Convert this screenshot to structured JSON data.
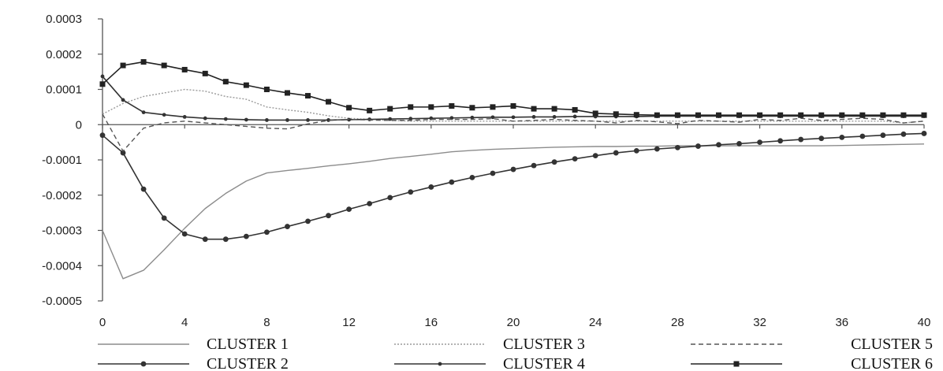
{
  "chart_data": {
    "type": "line",
    "title": "",
    "xlabel": "",
    "ylabel": "",
    "xlim": [
      0,
      40
    ],
    "ylim": [
      -0.0005,
      0.0003
    ],
    "x_ticks": [
      "0",
      "4",
      "8",
      "12",
      "16",
      "20",
      "24",
      "28",
      "32",
      "36",
      "40"
    ],
    "y_ticks": [
      "0.0003",
      "0.0002",
      "0.0001",
      "0",
      "-0.0001",
      "-0.0002",
      "-0.0003",
      "-0.0004",
      "-0.0005"
    ],
    "grid": false,
    "legend_position": "bottom",
    "x": [
      0,
      1,
      2,
      3,
      4,
      5,
      6,
      7,
      8,
      9,
      10,
      11,
      12,
      13,
      14,
      15,
      16,
      17,
      18,
      19,
      20,
      21,
      22,
      23,
      24,
      25,
      26,
      27,
      28,
      29,
      30,
      31,
      32,
      33,
      34,
      35,
      36,
      37,
      38,
      39,
      40
    ],
    "series": [
      {
        "name": "CLUSTER 1",
        "style": "solid",
        "marker": "none",
        "color": "#8c8c8c",
        "values": [
          -0.0003,
          -0.000437,
          -0.000413,
          -0.000355,
          -0.000294,
          -0.000238,
          -0.000195,
          -0.00016,
          -0.000137,
          -0.00013,
          -0.000124,
          -0.000117,
          -0.000111,
          -0.000104,
          -9.6e-05,
          -9e-05,
          -8.4e-05,
          -7.7e-05,
          -7.3e-05,
          -7e-05,
          -6.8e-05,
          -6.6e-05,
          -6.4e-05,
          -6.3e-05,
          -6.2e-05,
          -6.2e-05,
          -6.1e-05,
          -6.1e-05,
          -6e-05,
          -6e-05,
          -6e-05,
          -6e-05,
          -6e-05,
          -6e-05,
          -6e-05,
          -6e-05,
          -5.9e-05,
          -5.8e-05,
          -5.7e-05,
          -5.6e-05,
          -5.5e-05
        ]
      },
      {
        "name": "CLUSTER 2",
        "style": "solid",
        "marker": "circle",
        "color": "#333333",
        "values": [
          -3e-05,
          -8e-05,
          -0.000183,
          -0.000265,
          -0.00031,
          -0.000325,
          -0.000325,
          -0.000317,
          -0.000305,
          -0.000289,
          -0.000274,
          -0.000258,
          -0.00024,
          -0.000224,
          -0.000207,
          -0.000191,
          -0.000177,
          -0.000163,
          -0.00015,
          -0.000138,
          -0.000127,
          -0.000116,
          -0.000106,
          -9.7e-05,
          -8.8e-05,
          -8e-05,
          -7.4e-05,
          -6.9e-05,
          -6.5e-05,
          -6.1e-05,
          -5.7e-05,
          -5.4e-05,
          -5e-05,
          -4.6e-05,
          -4.2e-05,
          -3.9e-05,
          -3.6e-05,
          -3.3e-05,
          -3e-05,
          -2.7e-05,
          -2.5e-05
        ]
      },
      {
        "name": "CLUSTER 3",
        "style": "dotted",
        "marker": "none",
        "color": "#9a9a9a",
        "values": [
          3e-05,
          6e-05,
          8e-05,
          9e-05,
          0.0001,
          9.5e-05,
          8e-05,
          7.2e-05,
          5e-05,
          4.2e-05,
          3.5e-05,
          2.5e-05,
          1.8e-05,
          1.5e-05,
          1.2e-05,
          1e-05,
          1e-05,
          1e-05,
          1e-05,
          1e-05,
          1e-05,
          1e-05,
          1e-05,
          1e-05,
          1e-05,
          1e-05,
          1e-05,
          1e-05,
          1e-05,
          1e-05,
          1e-05,
          1e-05,
          1e-05,
          1e-05,
          1e-05,
          1e-05,
          1e-05,
          1e-05,
          1e-05,
          5e-06,
          1e-05
        ]
      },
      {
        "name": "CLUSTER 4",
        "style": "solid",
        "marker": "small-circle",
        "color": "#333333",
        "values": [
          0.000137,
          7e-05,
          3.5e-05,
          2.8e-05,
          2.2e-05,
          1.8e-05,
          1.6e-05,
          1.4e-05,
          1.3e-05,
          1.3e-05,
          1.3e-05,
          1.3e-05,
          1.4e-05,
          1.5e-05,
          1.6e-05,
          1.7e-05,
          1.8e-05,
          1.9e-05,
          2e-05,
          2.1e-05,
          2.1e-05,
          2.2e-05,
          2.2e-05,
          2.3e-05,
          2.3e-05,
          2.3e-05,
          2.3e-05,
          2.4e-05,
          2.4e-05,
          2.4e-05,
          2.4e-05,
          2.4e-05,
          2.4e-05,
          2.4e-05,
          2.4e-05,
          2.4e-05,
          2.4e-05,
          2.4e-05,
          2.4e-05,
          2.4e-05,
          2.4e-05
        ]
      },
      {
        "name": "CLUSTER 5",
        "style": "dashed",
        "marker": "none",
        "color": "#555555",
        "values": [
          3e-05,
          -7.5e-05,
          -1e-05,
          5e-06,
          1e-05,
          5e-06,
          0,
          -5e-06,
          -1e-05,
          -1.2e-05,
          2e-06,
          1.2e-05,
          1.5e-05,
          1.3e-05,
          1.2e-05,
          1.2e-05,
          1.5e-05,
          1.5e-05,
          1.5e-05,
          1.7e-05,
          1e-05,
          1.2e-05,
          1.5e-05,
          1.2e-05,
          1e-05,
          5e-06,
          1.2e-05,
          8e-06,
          3e-06,
          1.2e-05,
          1e-05,
          7e-06,
          1.5e-05,
          1.2e-05,
          1.8e-05,
          1.2e-05,
          1.5e-05,
          1.8e-05,
          1.5e-05,
          5e-06,
          1e-05
        ]
      },
      {
        "name": "CLUSTER 6",
        "style": "solid",
        "marker": "square",
        "color": "#222222",
        "values": [
          0.000115,
          0.000168,
          0.000178,
          0.000168,
          0.000156,
          0.000145,
          0.000122,
          0.000112,
          0.0001,
          9e-05,
          8.2e-05,
          6.5e-05,
          4.8e-05,
          4e-05,
          4.5e-05,
          5e-05,
          5e-05,
          5.3e-05,
          4.8e-05,
          5e-05,
          5.3e-05,
          4.5e-05,
          4.5e-05,
          4.2e-05,
          3.2e-05,
          3e-05,
          2.8e-05,
          2.7e-05,
          2.7e-05,
          2.7e-05,
          2.7e-05,
          2.7e-05,
          2.7e-05,
          2.7e-05,
          2.7e-05,
          2.7e-05,
          2.7e-05,
          2.7e-05,
          2.7e-05,
          2.7e-05,
          2.7e-05
        ]
      }
    ]
  }
}
